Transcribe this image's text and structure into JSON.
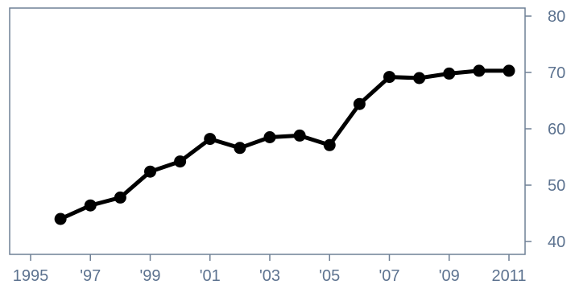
{
  "chart_data": {
    "type": "line",
    "title": "",
    "xlabel": "",
    "ylabel": "",
    "xlim": [
      1995,
      2011
    ],
    "ylim": [
      40,
      80
    ],
    "x_ticks": [
      {
        "value": 1995,
        "label": "1995"
      },
      {
        "value": 1997,
        "label": "'97"
      },
      {
        "value": 1999,
        "label": "'99"
      },
      {
        "value": 2001,
        "label": "'01"
      },
      {
        "value": 2003,
        "label": "'03"
      },
      {
        "value": 2005,
        "label": "'05"
      },
      {
        "value": 2007,
        "label": "'07"
      },
      {
        "value": 2009,
        "label": "'09"
      },
      {
        "value": 2011,
        "label": "2011"
      }
    ],
    "y_ticks": [
      {
        "value": 40,
        "label": "40"
      },
      {
        "value": 50,
        "label": "50"
      },
      {
        "value": 60,
        "label": "60"
      },
      {
        "value": 70,
        "label": "70"
      },
      {
        "value": 80,
        "label": "80"
      }
    ],
    "y_axis_side": "right",
    "grid": false,
    "legend": "none",
    "series": [
      {
        "x": [
          1996,
          1997,
          1998,
          1999,
          2000,
          2001,
          2002,
          2003,
          2004,
          2005,
          2006,
          2007,
          2008,
          2009,
          2010,
          2011
        ],
        "y": [
          44,
          46.4,
          47.8,
          52.4,
          54.2,
          58.2,
          56.6,
          58.5,
          58.8,
          57.1,
          64.4,
          69.2,
          69.0,
          69.8,
          70.3,
          70.3
        ],
        "color": "#000000"
      }
    ],
    "colors": {
      "axis": "#6f8096",
      "tick_label": "#5d7390",
      "line": "#000000",
      "background": "#ffffff"
    }
  }
}
